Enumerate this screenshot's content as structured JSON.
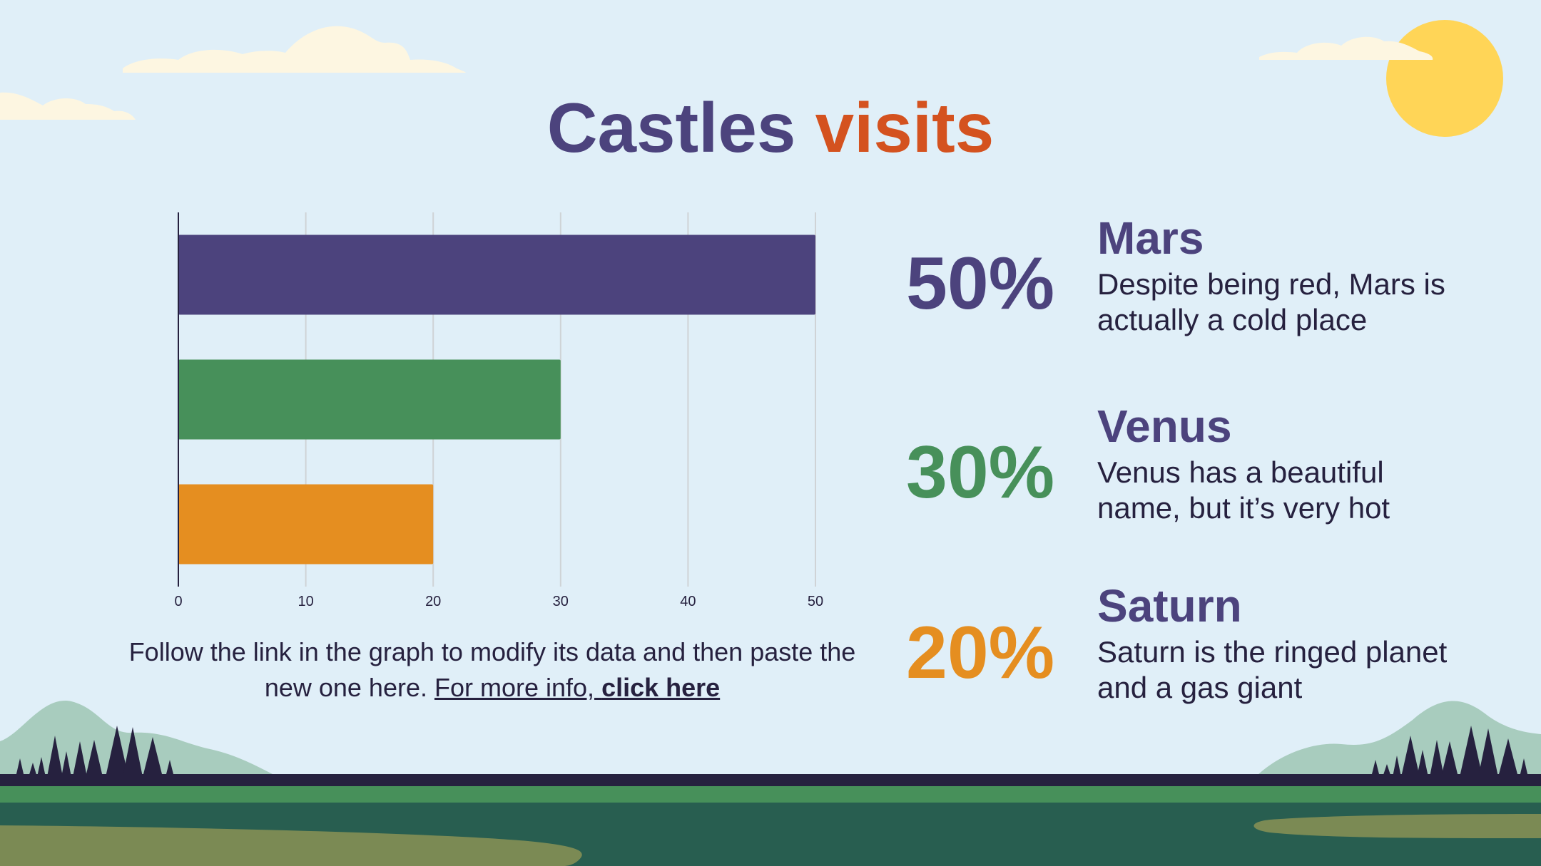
{
  "title": {
    "word1": "Castles",
    "word2": "visits"
  },
  "colors": {
    "purple": "#4c437d",
    "green": "#47905a",
    "orange": "#e58e20",
    "title_accent": "#d4521f",
    "sky": "#e0eff8",
    "sun": "#ffd557"
  },
  "chart_data": {
    "type": "bar",
    "orientation": "horizontal",
    "categories": [
      "Mars",
      "Venus",
      "Saturn"
    ],
    "values": [
      50,
      30,
      20
    ],
    "xlim": [
      0,
      50
    ],
    "xticks": [
      0,
      10,
      20,
      30,
      40,
      50
    ],
    "grid": true,
    "bar_colors": [
      "#4c437d",
      "#47905a",
      "#e58e20"
    ]
  },
  "caption": {
    "text": "Follow the link in the graph to modify its data and then paste the new one here. ",
    "link_prefix": "For more info, ",
    "link_bold": "click here"
  },
  "stats": [
    {
      "percent": "50%",
      "name": "Mars",
      "description": "Despite being red, Mars is actually a cold place",
      "color": "#4c437d"
    },
    {
      "percent": "30%",
      "name": "Venus",
      "description": "Venus has a beautiful name, but it’s very hot",
      "color": "#47905a"
    },
    {
      "percent": "20%",
      "name": "Saturn",
      "description": "Saturn is the ringed planet and a gas giant",
      "color": "#e58e20"
    }
  ]
}
